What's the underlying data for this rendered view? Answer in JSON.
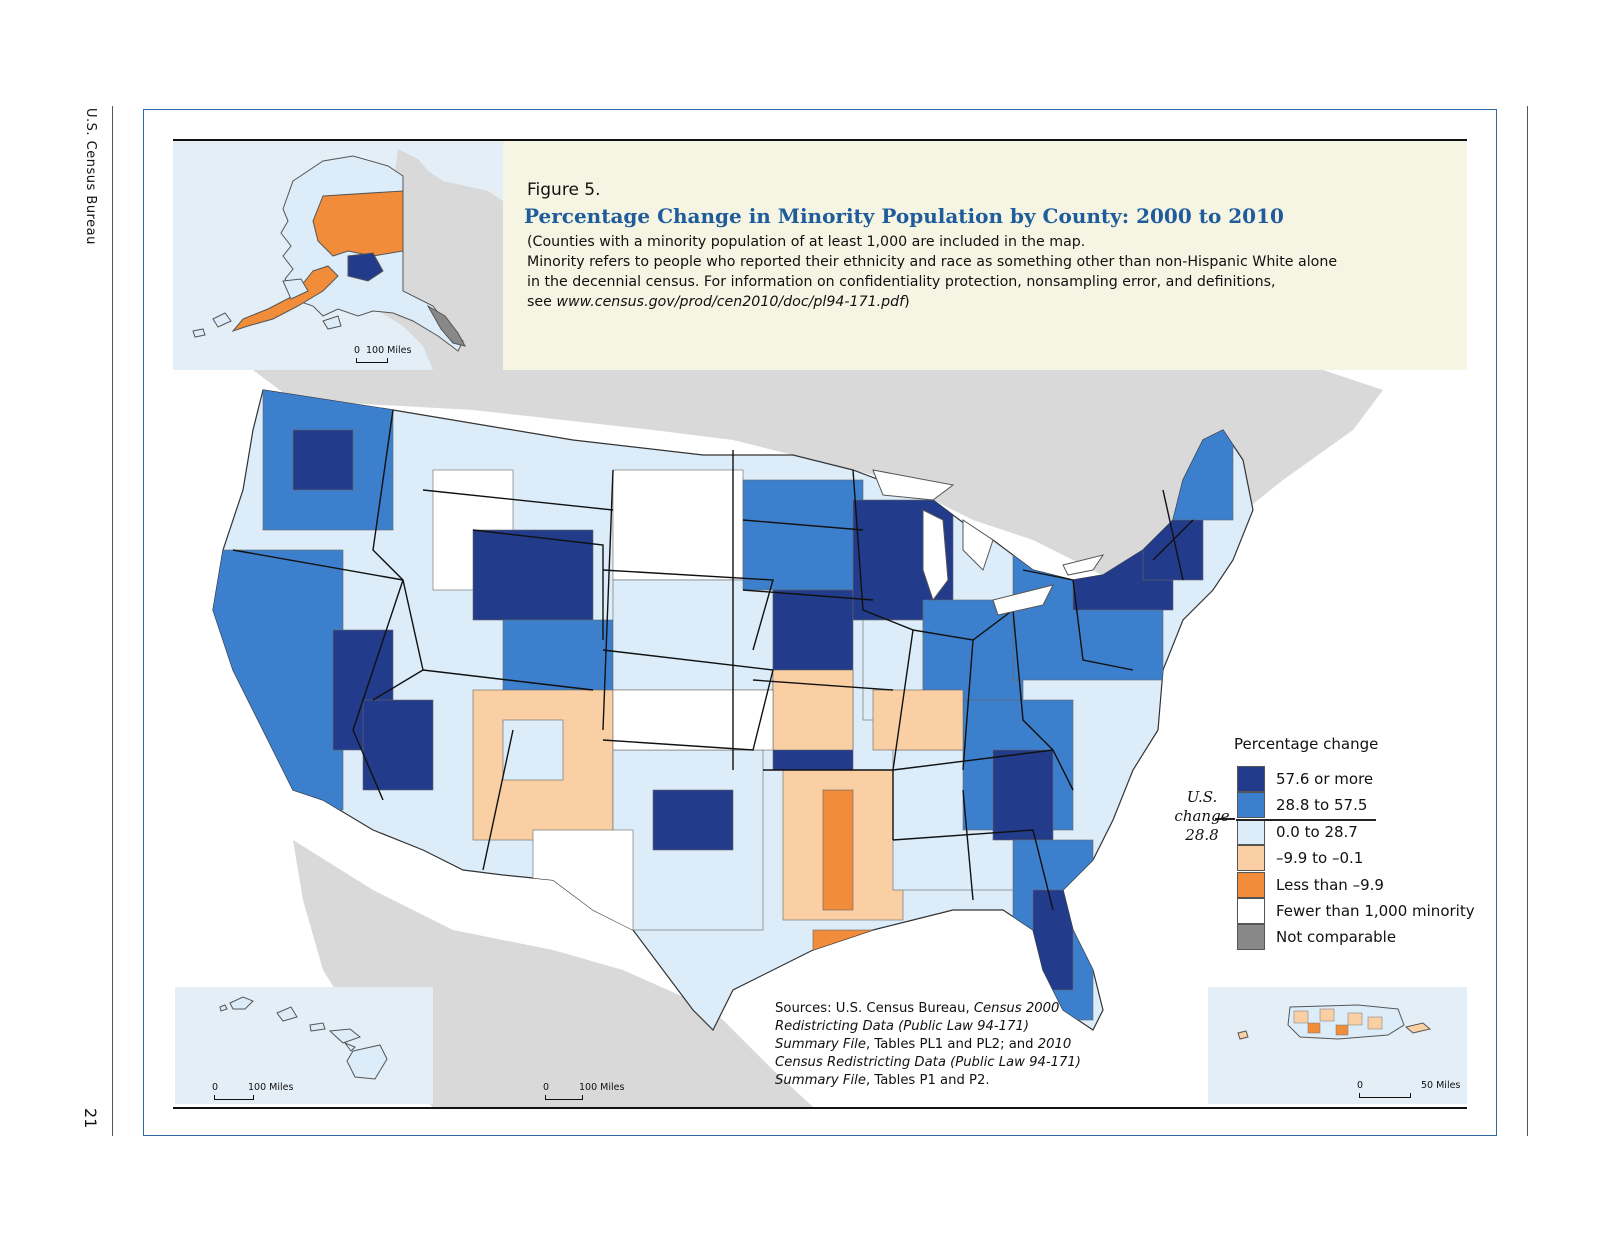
{
  "page": {
    "running_head": "U.S. Census Bureau",
    "page_number": "21"
  },
  "figure": {
    "label": "Figure 5.",
    "title": "Percentage Change in Minority Population by County: 2000 to 2010",
    "note_line1": "(Counties with a minority population of at least 1,000 are included in the map.",
    "note_line2": "Minority refers to people who reported their ethnicity and race as something other than non-Hispanic White alone",
    "note_line3": "in the decennial census. For information on confidentiality protection, nonsampling error, and definitions,",
    "note_line4_prefix": "see ",
    "note_line4_url": "www.census.gov/prod/cen2010/doc/pl94-171.pdf",
    "note_line4_suffix": ")"
  },
  "insets": {
    "alaska_scale": {
      "zero": "0",
      "label": "100 Miles"
    },
    "hawaii_scale": {
      "zero": "0",
      "label": "100 Miles"
    },
    "main_scale": {
      "zero": "0",
      "label": "100 Miles"
    },
    "pr_scale": {
      "zero": "0",
      "label": "50 Miles"
    }
  },
  "legend": {
    "title": "Percentage change",
    "items": [
      {
        "label": "57.6 or more",
        "color": "#223b8a"
      },
      {
        "label": "28.8 to 57.5",
        "color": "#3c7fcc"
      },
      {
        "label": "0.0 to 28.7",
        "color": "#dcedf9"
      },
      {
        "label": "–9.9 to –0.1",
        "color": "#f9cfa3"
      },
      {
        "label": "Less than –9.9",
        "color": "#f08c3a"
      },
      {
        "label": "Fewer than 1,000 minority",
        "color": "#ffffff"
      },
      {
        "label": "Not comparable",
        "color": "#888888"
      }
    ],
    "us_change_line1": "U.S.",
    "us_change_line2": "change",
    "us_change_line3": "28.8"
  },
  "sources": {
    "l1_a": "Sources: U.S. Census Bureau, ",
    "l1_b": "Census 2000",
    "l2": "Redistricting Data (Public Law 94-171)",
    "l3_a": "Summary File",
    "l3_b": ", Tables PL1 and PL2; and ",
    "l3_c": "2010",
    "l4": "Census Redistricting Data (Public Law 94-171)",
    "l5_a": "Summary File",
    "l5_b": ", Tables P1 and P2."
  },
  "colors": {
    "frame": "#2d6aa3",
    "title": "#1e5c9b",
    "panel": "#f6f5e4",
    "water": "#e3eef6",
    "land_outside": "#d9d9d9"
  }
}
